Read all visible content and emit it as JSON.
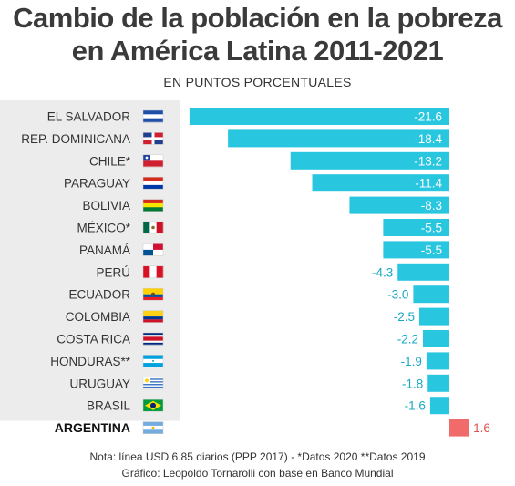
{
  "header": {
    "title_line1": "Cambio de la población en la pobreza",
    "title_line2": "en América Latina 2011-2021",
    "subtitle": "EN PUNTOS PORCENTUALES"
  },
  "footer": {
    "note": "Nota: línea USD 6.85 diarios (PPP 2017)  -  *Datos 2020 **Datos 2019",
    "credit": "Gráfico: Leopoldo Tornarolli con base en Banco Mundial"
  },
  "colors": {
    "negative_bar": "#29c6e0",
    "positive_bar": "#f26b6b",
    "label_panel": "#ececec",
    "highlight_label": "#111111",
    "label_text": "#333333"
  },
  "chart_data": {
    "type": "bar",
    "orientation": "horizontal",
    "title": "Cambio de la población en la pobreza en América Latina 2011-2021",
    "subtitle": "EN PUNTOS PORCENTUALES",
    "xlim": [
      -21.6,
      1.6
    ],
    "grid": false,
    "legend": "none",
    "categories": [
      "EL SALVADOR",
      "REP. DOMINICANA",
      "CHILE*",
      "PARAGUAY",
      "BOLIVIA",
      "MÉXICO*",
      "PANAMÁ",
      "PERÚ",
      "ECUADOR",
      "COLOMBIA",
      "COSTA RICA",
      "HONDURAS**",
      "URUGUAY",
      "BRASIL",
      "ARGENTINA"
    ],
    "values": [
      -21.6,
      -18.4,
      -13.2,
      -11.4,
      -8.3,
      -5.5,
      -5.5,
      -4.3,
      -3.0,
      -2.5,
      -2.2,
      -1.9,
      -1.8,
      -1.6,
      1.6
    ],
    "value_labels": [
      "-21.6",
      "-18.4",
      "-13.2",
      "-11.4",
      "-8.3",
      "-5.5",
      "-5.5",
      "-4.3",
      "-3.0",
      "-2.5",
      "-2.2",
      "-1.9",
      "-1.8",
      "-1.6",
      "1.6"
    ],
    "flag_icons": [
      "el-salvador-flag-icon",
      "dominican-republic-flag-icon",
      "chile-flag-icon",
      "paraguay-flag-icon",
      "bolivia-flag-icon",
      "mexico-flag-icon",
      "panama-flag-icon",
      "peru-flag-icon",
      "ecuador-flag-icon",
      "colombia-flag-icon",
      "costa-rica-flag-icon",
      "honduras-flag-icon",
      "uruguay-flag-icon",
      "brazil-flag-icon",
      "argentina-flag-icon"
    ],
    "highlight": "ARGENTINA"
  }
}
